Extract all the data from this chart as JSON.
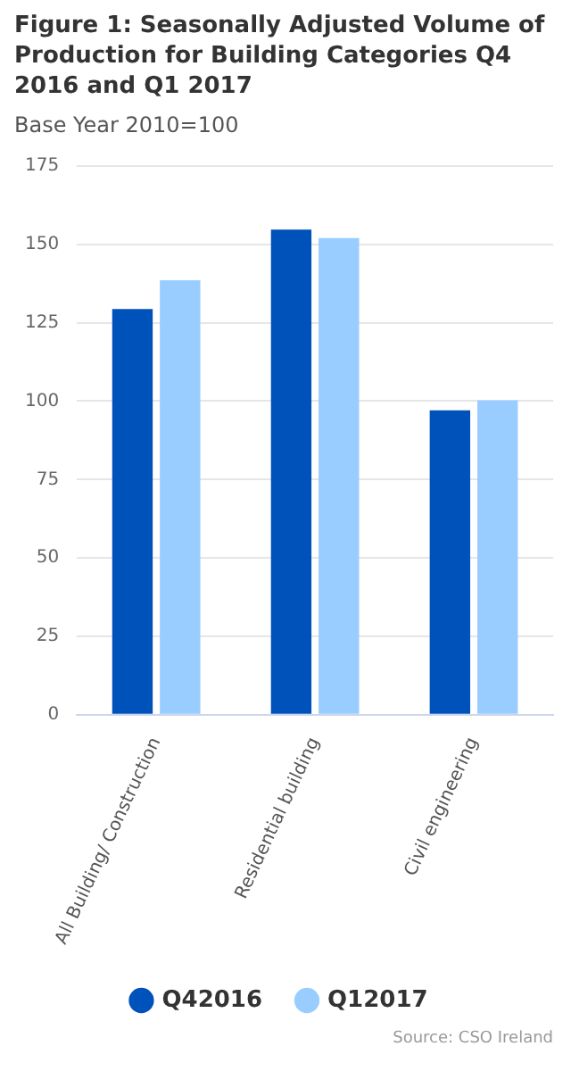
{
  "chart_data": {
    "type": "bar",
    "title": "Figure 1: Seasonally Adjusted Volume of Production for Building Categories Q4 2016 and Q1 2017",
    "subtitle": "Base Year 2010=100",
    "categories": [
      "All Building/ Construction",
      "Residential building",
      "Civil engineering"
    ],
    "series": [
      {
        "name": "Q42016",
        "color": "#0052bb",
        "values": [
          129.4,
          154.7,
          97.1
        ]
      },
      {
        "name": "Q12017",
        "color": "#99ccff",
        "values": [
          138.6,
          152.0,
          100.3
        ]
      }
    ],
    "ylim": [
      0,
      175
    ],
    "yticks": [
      0,
      25,
      50,
      75,
      100,
      125,
      150,
      175
    ],
    "grid": "y",
    "legend": "bottom",
    "annotations": [
      "Source: CSO Ireland"
    ]
  }
}
